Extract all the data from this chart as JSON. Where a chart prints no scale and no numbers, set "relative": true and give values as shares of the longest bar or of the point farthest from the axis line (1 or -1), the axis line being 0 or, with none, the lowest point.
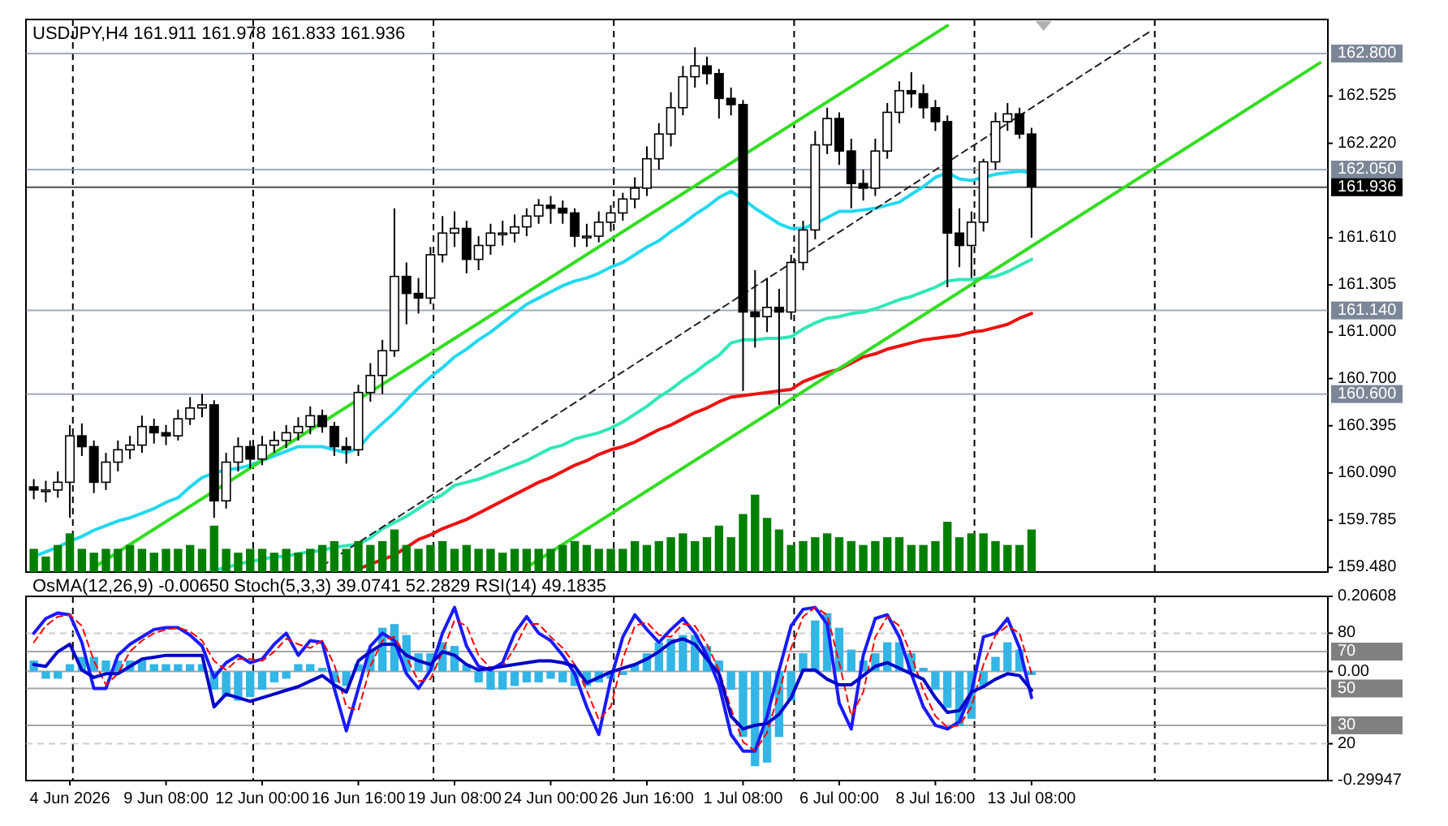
{
  "chart_data": [
    {
      "type": "candlestick",
      "title": "USDJPY,H4  161.911 161.978 161.833 161.936",
      "tick_labels": "y",
      "categories": [
        null,
        null,
        null,
        null,
        null,
        null,
        null,
        null,
        null,
        null,
        null,
        null,
        null,
        null,
        null,
        null,
        null,
        null,
        null,
        null,
        null,
        null,
        null,
        null,
        null,
        null,
        null,
        null,
        null,
        null,
        null,
        null,
        null,
        null,
        null,
        null,
        null,
        null,
        null,
        null,
        null,
        null,
        null,
        null,
        null,
        null,
        null,
        null,
        null,
        null,
        null,
        null,
        null,
        null,
        null,
        null,
        null,
        null,
        null,
        null,
        null,
        null,
        null,
        null,
        null,
        null,
        null,
        null,
        null,
        null,
        null,
        null,
        null,
        null,
        null,
        null,
        null,
        null,
        null,
        null,
        null,
        null,
        null,
        null,
        null,
        null,
        null,
        null,
        null,
        null,
        null,
        null,
        null,
        null,
        null,
        null,
        null,
        null,
        null,
        null,
        null,
        null,
        null,
        null,
        null,
        null,
        null,
        null
      ],
      "ohlc": [
        [
          160.0,
          160.05,
          159.92,
          159.98
        ],
        [
          159.98,
          160.04,
          159.9,
          159.98
        ],
        [
          159.98,
          160.1,
          159.93,
          160.03
        ],
        [
          160.03,
          160.4,
          159.8,
          160.33
        ],
        [
          160.33,
          160.41,
          160.2,
          160.26
        ],
        [
          160.26,
          160.3,
          159.96,
          160.03
        ],
        [
          160.03,
          160.22,
          159.98,
          160.16
        ],
        [
          160.16,
          160.3,
          160.1,
          160.24
        ],
        [
          160.24,
          160.33,
          160.18,
          160.27
        ],
        [
          160.27,
          160.46,
          160.22,
          160.39
        ],
        [
          160.39,
          160.44,
          160.28,
          160.35
        ],
        [
          160.35,
          160.4,
          160.27,
          160.33
        ],
        [
          160.33,
          160.5,
          160.3,
          160.44
        ],
        [
          160.44,
          160.58,
          160.4,
          160.51
        ],
        [
          160.51,
          160.6,
          160.45,
          160.53
        ],
        [
          160.53,
          160.56,
          159.8,
          159.91
        ],
        [
          159.91,
          160.22,
          159.86,
          160.16
        ],
        [
          160.16,
          160.32,
          160.1,
          160.26
        ],
        [
          160.26,
          160.3,
          160.12,
          160.18
        ],
        [
          160.18,
          160.33,
          160.14,
          160.27
        ],
        [
          160.27,
          160.36,
          160.22,
          160.3
        ],
        [
          160.3,
          160.4,
          160.25,
          160.35
        ],
        [
          160.35,
          160.45,
          160.3,
          160.39
        ],
        [
          160.39,
          160.52,
          160.34,
          160.46
        ],
        [
          160.46,
          160.5,
          160.35,
          160.39
        ],
        [
          160.39,
          160.42,
          160.2,
          160.26
        ],
        [
          160.26,
          160.32,
          160.15,
          160.24
        ],
        [
          160.24,
          160.66,
          160.2,
          160.61
        ],
        [
          160.61,
          160.8,
          160.55,
          160.72
        ],
        [
          160.72,
          160.95,
          160.6,
          160.88
        ],
        [
          160.88,
          161.8,
          160.84,
          161.36
        ],
        [
          161.36,
          161.45,
          161.05,
          161.25
        ],
        [
          161.25,
          161.35,
          161.12,
          161.22
        ],
        [
          161.22,
          161.55,
          161.18,
          161.5
        ],
        [
          161.5,
          161.75,
          161.45,
          161.64
        ],
        [
          161.64,
          161.78,
          161.55,
          161.67
        ],
        [
          161.67,
          161.72,
          161.38,
          161.47
        ],
        [
          161.47,
          161.62,
          161.4,
          161.56
        ],
        [
          161.56,
          161.7,
          161.5,
          161.64
        ],
        [
          161.64,
          161.72,
          161.56,
          161.64
        ],
        [
          161.64,
          161.76,
          161.58,
          161.68
        ],
        [
          161.68,
          161.8,
          161.62,
          161.75
        ],
        [
          161.75,
          161.86,
          161.7,
          161.82
        ],
        [
          161.82,
          161.88,
          161.7,
          161.8
        ],
        [
          161.8,
          161.85,
          161.7,
          161.77
        ],
        [
          161.77,
          161.8,
          161.55,
          161.62
        ],
        [
          161.62,
          161.7,
          161.55,
          161.62
        ],
        [
          161.62,
          161.78,
          161.58,
          161.71
        ],
        [
          161.71,
          161.82,
          161.65,
          161.77
        ],
        [
          161.77,
          161.9,
          161.72,
          161.86
        ],
        [
          161.86,
          162.0,
          161.8,
          161.93
        ],
        [
          161.93,
          162.2,
          161.88,
          162.12
        ],
        [
          162.12,
          162.35,
          162.05,
          162.28
        ],
        [
          162.28,
          162.55,
          162.2,
          162.45
        ],
        [
          162.45,
          162.72,
          162.4,
          162.65
        ],
        [
          162.65,
          162.84,
          162.58,
          162.72
        ],
        [
          162.72,
          162.78,
          162.6,
          162.67
        ],
        [
          162.67,
          162.7,
          162.38,
          162.51
        ],
        [
          162.51,
          162.58,
          162.4,
          162.47
        ],
        [
          162.47,
          162.5,
          160.62,
          161.13
        ],
        [
          161.13,
          161.4,
          160.9,
          161.1
        ],
        [
          161.1,
          161.35,
          161.0,
          161.16
        ],
        [
          161.16,
          161.28,
          160.53,
          161.13
        ],
        [
          161.13,
          161.5,
          161.08,
          161.45
        ],
        [
          161.45,
          161.72,
          161.4,
          161.66
        ],
        [
          161.66,
          162.3,
          161.6,
          162.21
        ],
        [
          162.21,
          162.45,
          162.15,
          162.38
        ],
        [
          162.38,
          162.42,
          162.08,
          162.17
        ],
        [
          162.17,
          162.25,
          161.8,
          161.96
        ],
        [
          161.96,
          162.05,
          161.85,
          161.93
        ],
        [
          161.93,
          162.25,
          161.88,
          162.17
        ],
        [
          162.17,
          162.48,
          162.12,
          162.42
        ],
        [
          162.42,
          162.62,
          162.35,
          162.56
        ],
        [
          162.56,
          162.68,
          162.45,
          162.54
        ],
        [
          162.54,
          162.6,
          162.38,
          162.45
        ],
        [
          162.45,
          162.5,
          162.3,
          162.36
        ],
        [
          162.36,
          162.4,
          161.29,
          161.64
        ],
        [
          161.64,
          161.8,
          161.42,
          161.56
        ],
        [
          161.56,
          161.78,
          161.35,
          161.71
        ],
        [
          161.71,
          162.12,
          161.65,
          162.1
        ],
        [
          162.1,
          162.42,
          162.05,
          162.36
        ],
        [
          162.36,
          162.48,
          162.3,
          162.41
        ],
        [
          162.41,
          162.45,
          162.25,
          162.28
        ],
        [
          162.28,
          162.32,
          161.61,
          161.94
        ],
        null,
        null,
        null,
        null,
        null,
        null,
        null,
        null,
        null,
        null,
        null,
        null,
        null,
        null,
        null,
        null,
        null,
        null,
        null,
        null,
        null,
        null,
        null,
        null
      ],
      "ylim": [
        159.45,
        163.02
      ],
      "yticks": [
        {
          "value": 159.48,
          "label": "159.480"
        },
        159.785,
        {
          "value": 160.09,
          "label": "160.090"
        },
        160.395,
        {
          "value": 160.7,
          "label": "160.700"
        },
        {
          "value": 161,
          "label": "161.000"
        },
        161.305,
        {
          "value": 161.61,
          "label": "161.610"
        },
        {
          "value": 162.22,
          "label": "162.220"
        },
        162.525
      ],
      "ref_lines": [
        {
          "axis": "y",
          "value": 162.8,
          "label": "162.800",
          "color": "#7b8797"
        },
        {
          "axis": "y",
          "value": 162.05,
          "label": "162.050",
          "color": "#7b8797"
        },
        {
          "axis": "y",
          "value": 161.936,
          "label": "161.936",
          "color": "#000000"
        },
        {
          "axis": "y",
          "value": 161.14,
          "label": "161.140",
          "color": "#7b8797"
        },
        {
          "axis": "y",
          "value": 160.6,
          "label": "160.600",
          "color": "#7b8797"
        }
      ],
      "series": [
        {
          "type": "line",
          "color": "#22d8f0",
          "values": [
            159.55,
            159.58,
            159.61,
            159.65,
            159.68,
            159.72,
            159.75,
            159.78,
            159.8,
            159.83,
            159.86,
            159.9,
            159.93,
            160.0,
            160.06,
            160.09,
            160.11,
            160.12,
            160.14,
            160.17,
            160.2,
            160.23,
            160.26,
            160.26,
            160.26,
            160.24,
            160.22,
            160.25,
            160.34,
            160.41,
            160.48,
            160.56,
            160.64,
            160.71,
            160.77,
            160.84,
            160.89,
            160.95,
            161.0,
            161.06,
            161.12,
            161.18,
            161.22,
            161.26,
            161.3,
            161.33,
            161.35,
            161.38,
            161.42,
            161.45,
            161.5,
            161.55,
            161.59,
            161.65,
            161.7,
            161.76,
            161.81,
            161.87,
            161.91,
            161.86,
            161.8,
            161.75,
            161.7,
            161.67,
            161.67,
            161.7,
            161.74,
            161.78,
            161.78,
            161.79,
            161.8,
            161.82,
            161.84,
            161.89,
            161.94,
            162.0,
            162.03,
            161.99,
            161.98,
            162.0,
            162.02,
            162.03,
            162.04,
            162.03,
            null,
            null,
            null,
            null,
            null,
            null,
            null,
            null,
            null,
            null,
            null,
            null,
            null,
            null,
            null,
            null,
            null,
            null,
            null,
            null,
            null,
            null,
            null,
            null
          ]
        },
        {
          "type": "line",
          "color": "#30e8b8",
          "values": [
            null,
            null,
            null,
            null,
            null,
            null,
            null,
            null,
            null,
            null,
            null,
            null,
            null,
            null,
            null,
            159.46,
            159.48,
            159.5,
            159.52,
            159.53,
            159.55,
            159.55,
            159.57,
            159.58,
            159.59,
            159.61,
            159.62,
            159.63,
            159.67,
            159.73,
            159.77,
            159.81,
            159.86,
            159.91,
            159.95,
            160.01,
            160.03,
            160.05,
            160.08,
            160.11,
            160.14,
            160.17,
            160.21,
            160.25,
            160.27,
            160.31,
            160.33,
            160.35,
            160.38,
            160.42,
            160.47,
            160.52,
            160.58,
            160.63,
            160.69,
            160.74,
            160.8,
            160.85,
            160.93,
            160.95,
            160.95,
            160.96,
            160.96,
            160.97,
            161.02,
            161.06,
            161.09,
            161.1,
            161.12,
            161.13,
            161.15,
            161.18,
            161.21,
            161.23,
            161.26,
            161.29,
            161.33,
            161.34,
            161.34,
            161.35,
            161.36,
            161.39,
            161.43,
            161.47,
            null,
            null,
            null,
            null,
            null,
            null,
            null,
            null,
            null,
            null,
            null,
            null,
            null,
            null,
            null,
            null,
            null,
            null,
            null,
            null,
            null,
            null,
            null,
            null
          ]
        },
        {
          "type": "line",
          "color": "#ee1111",
          "values": [
            null,
            null,
            null,
            null,
            null,
            null,
            null,
            null,
            null,
            null,
            null,
            null,
            null,
            null,
            null,
            null,
            null,
            null,
            null,
            null,
            null,
            null,
            null,
            null,
            null,
            null,
            null,
            159.47,
            159.5,
            159.53,
            159.56,
            159.61,
            159.66,
            159.69,
            159.73,
            159.76,
            159.79,
            159.83,
            159.87,
            159.91,
            159.95,
            159.99,
            160.03,
            160.06,
            160.1,
            160.14,
            160.17,
            160.21,
            160.24,
            160.26,
            160.29,
            160.33,
            160.37,
            160.4,
            160.44,
            160.48,
            160.51,
            160.55,
            160.58,
            160.59,
            160.6,
            160.61,
            160.62,
            160.63,
            160.68,
            160.71,
            160.74,
            160.76,
            160.8,
            160.84,
            160.86,
            160.89,
            160.91,
            160.93,
            160.95,
            160.96,
            160.97,
            160.98,
            161.0,
            161.01,
            161.03,
            161.05,
            161.09,
            161.12,
            null,
            null,
            null,
            null,
            null,
            null,
            null,
            null,
            null,
            null,
            null,
            null,
            null,
            null,
            null,
            null,
            null,
            null,
            null,
            null,
            null,
            null,
            null,
            null
          ]
        },
        {
          "type": "line",
          "color": "#33dd22",
          "values": [
            null,
            null,
            null,
            null,
            null,
            159.48,
            null,
            null,
            null,
            null,
            null,
            null,
            null,
            null,
            null,
            null,
            null,
            null,
            null,
            null,
            null,
            null,
            null,
            null,
            null,
            null,
            null,
            null,
            null,
            null,
            null,
            null,
            null,
            null,
            null,
            null,
            null,
            null,
            null,
            null,
            null,
            null,
            null,
            null,
            null,
            null,
            null,
            null,
            null,
            null,
            null,
            null,
            null,
            null,
            null,
            null,
            null,
            null,
            null,
            null,
            null,
            null,
            null,
            null,
            null,
            null,
            null,
            null,
            null,
            null,
            null,
            null,
            null,
            null,
            null,
            null,
            162.98,
            null,
            null,
            null,
            null,
            null,
            null,
            null,
            null,
            null,
            null,
            null,
            null,
            null,
            null,
            null,
            null,
            null,
            null,
            null,
            null,
            null,
            null,
            null,
            null,
            null,
            null,
            null,
            null,
            null,
            null,
            null
          ]
        },
        {
          "type": "line",
          "color": "#33dd22",
          "values": [
            null,
            null,
            null,
            null,
            null,
            null,
            null,
            null,
            null,
            null,
            null,
            null,
            null,
            null,
            null,
            null,
            null,
            null,
            null,
            null,
            null,
            null,
            null,
            null,
            null,
            null,
            null,
            null,
            null,
            null,
            null,
            null,
            null,
            null,
            null,
            null,
            null,
            null,
            null,
            null,
            null,
            159.48,
            null,
            null,
            null,
            null,
            null,
            null,
            null,
            null,
            null,
            null,
            null,
            null,
            null,
            null,
            null,
            null,
            null,
            null,
            null,
            null,
            null,
            null,
            null,
            null,
            null,
            null,
            null,
            null,
            null,
            null,
            null,
            null,
            null,
            null,
            null,
            null,
            null,
            null,
            null,
            null,
            null,
            null,
            null,
            null,
            null,
            null,
            null,
            null,
            null,
            null,
            null,
            null,
            null,
            null,
            null,
            null,
            null,
            null,
            null,
            null,
            null,
            null,
            null,
            null,
            null,
            162.74
          ]
        },
        {
          "type": "line",
          "color": "#222222",
          "line_style": "dashed",
          "values": [
            null,
            null,
            null,
            null,
            null,
            null,
            null,
            null,
            null,
            null,
            null,
            null,
            null,
            null,
            null,
            null,
            null,
            null,
            null,
            null,
            null,
            null,
            null,
            null,
            159.49,
            null,
            null,
            null,
            null,
            null,
            null,
            null,
            null,
            null,
            null,
            null,
            null,
            null,
            null,
            null,
            null,
            null,
            null,
            null,
            null,
            null,
            null,
            null,
            null,
            null,
            null,
            null,
            null,
            null,
            null,
            null,
            null,
            null,
            null,
            null,
            null,
            null,
            null,
            null,
            null,
            null,
            null,
            null,
            null,
            null,
            null,
            null,
            null,
            null,
            null,
            null,
            null,
            null,
            null,
            null,
            null,
            null,
            null,
            null,
            null,
            null,
            null,
            null,
            null,
            null,
            null,
            null,
            null,
            162.95,
            null,
            null,
            null,
            null,
            null,
            null,
            null,
            null,
            null,
            null,
            null,
            null,
            null,
            null
          ]
        }
      ]
    },
    {
      "type": "bar",
      "relative": true,
      "tick_labels": false,
      "color": "#008000",
      "categories": [
        null,
        null,
        null,
        null,
        null,
        null,
        null,
        null,
        null,
        null,
        null,
        null,
        null,
        null,
        null,
        null,
        null,
        null,
        null,
        null,
        null,
        null,
        null,
        null,
        null,
        null,
        null,
        null,
        null,
        null,
        null,
        null,
        null,
        null,
        null,
        null,
        null,
        null,
        null,
        null,
        null,
        null,
        null,
        null,
        null,
        null,
        null,
        null,
        null,
        null,
        null,
        null,
        null,
        null,
        null,
        null,
        null,
        null,
        null,
        null,
        null,
        null,
        null,
        null,
        null,
        null,
        null,
        null,
        null,
        null,
        null,
        null,
        null,
        null,
        null,
        null,
        null,
        null,
        null,
        null,
        null,
        null,
        null,
        null,
        null,
        null,
        null,
        null,
        null,
        null,
        null,
        null,
        null,
        null,
        null,
        null,
        null,
        null,
        null,
        null,
        null,
        null,
        null,
        null,
        null,
        null,
        null,
        null
      ],
      "values": [
        0.3,
        0.2,
        0.35,
        0.5,
        0.3,
        0.25,
        0.3,
        0.3,
        0.35,
        0.3,
        0.25,
        0.3,
        0.3,
        0.35,
        0.3,
        0.6,
        0.3,
        0.25,
        0.3,
        0.3,
        0.25,
        0.3,
        0.25,
        0.3,
        0.35,
        0.4,
        0.3,
        0.4,
        0.35,
        0.4,
        0.55,
        0.35,
        0.3,
        0.35,
        0.4,
        0.3,
        0.35,
        0.3,
        0.3,
        0.25,
        0.3,
        0.3,
        0.3,
        0.3,
        0.35,
        0.4,
        0.35,
        0.3,
        0.3,
        0.3,
        0.4,
        0.35,
        0.4,
        0.45,
        0.5,
        0.4,
        0.45,
        0.6,
        0.45,
        0.75,
        1,
        0.7,
        0.55,
        0.35,
        0.4,
        0.45,
        0.5,
        0.45,
        0.4,
        0.35,
        0.4,
        0.45,
        0.45,
        0.35,
        0.35,
        0.4,
        0.65,
        0.45,
        0.5,
        0.5,
        0.4,
        0.35,
        0.35,
        0.55,
        null,
        null,
        null,
        null,
        null,
        null,
        null,
        null,
        null,
        null,
        null,
        null,
        null,
        null,
        null,
        null,
        null,
        null,
        null,
        null,
        null,
        null,
        null,
        null
      ]
    },
    {
      "type": "bar",
      "title": "OsMA(12,26,9) -0.00650  Stoch(5,3,3) 39.0741 52.2829  RSI(14) 49.1835",
      "categories": [
        null,
        null,
        null,
        "4 Jun 2026",
        null,
        null,
        null,
        null,
        null,
        null,
        null,
        "9 Jun 08:00",
        null,
        null,
        null,
        null,
        null,
        null,
        null,
        "12 Jun 00:00",
        null,
        null,
        null,
        null,
        null,
        null,
        null,
        "16 Jun 16:00",
        null,
        null,
        null,
        null,
        null,
        null,
        null,
        "19 Jun 08:00",
        null,
        null,
        null,
        null,
        null,
        null,
        null,
        "24 Jun 00:00",
        null,
        null,
        null,
        null,
        null,
        null,
        null,
        "26 Jun 16:00",
        null,
        null,
        null,
        null,
        null,
        null,
        null,
        "1 Jul 08:00",
        null,
        null,
        null,
        null,
        null,
        null,
        null,
        "6 Jul 00:00",
        null,
        null,
        null,
        null,
        null,
        null,
        null,
        "8 Jul 16:00",
        null,
        null,
        null,
        null,
        null,
        null,
        null,
        "13 Jul 08:00",
        null,
        null,
        null,
        null,
        null,
        null,
        null,
        null,
        null,
        null,
        null,
        null,
        null,
        null,
        null,
        null,
        null,
        null,
        null,
        null,
        null,
        null,
        null,
        null
      ],
      "ylim": [
        0,
        100
      ],
      "yticks": [
        20,
        80
      ],
      "y2lim": [
        -0.29947,
        0.20608
      ],
      "y2ticks": [
        -0.29947,
        {
          "value": 0,
          "label": "0.00"
        },
        0.20608
      ],
      "ref_lines": [
        {
          "axis": "y",
          "value": 80,
          "color": "#b8b8b8",
          "line_style": "dashed"
        },
        {
          "axis": "y",
          "value": 70,
          "label": "70",
          "color": "#808080"
        },
        {
          "axis": "y",
          "value": 50,
          "label": "50",
          "color": "#808080"
        },
        {
          "axis": "y",
          "value": 30,
          "label": "30",
          "color": "#808080"
        },
        {
          "axis": "y",
          "value": 20,
          "color": "#b8b8b8",
          "line_style": "dashed"
        },
        {
          "axis": "y2",
          "value": 0,
          "color": "#808080"
        }
      ],
      "series": [
        {
          "axis": "y2",
          "color": "#33b5e5",
          "values": [
            0.03,
            -0.02,
            -0.02,
            0.02,
            0.04,
            0.04,
            0.03,
            0.03,
            0.03,
            0.03,
            0.02,
            0.02,
            0.02,
            0.02,
            0.02,
            -0.05,
            -0.07,
            -0.08,
            -0.07,
            -0.05,
            -0.03,
            -0.02,
            0.02,
            0.02,
            0.01,
            -0.03,
            -0.04,
            0.02,
            0.06,
            0.12,
            0.13,
            0.1,
            0.05,
            0.05,
            0.08,
            0.07,
            0.02,
            -0.03,
            -0.05,
            -0.05,
            -0.04,
            -0.03,
            -0.03,
            -0.02,
            -0.03,
            -0.04,
            -0.04,
            -0.03,
            -0.02,
            -0.01,
            0.02,
            0.05,
            0.08,
            0.09,
            0.1,
            0.1,
            0.07,
            0.03,
            -0.05,
            -0.18,
            -0.26,
            -0.25,
            -0.18,
            -0.08,
            0.05,
            0.14,
            0.16,
            0.12,
            0.06,
            0.03,
            0.05,
            0.08,
            0.08,
            0.05,
            0.01,
            -0.05,
            -0.1,
            -0.15,
            -0.13,
            -0.04,
            0.04,
            0.08,
            0.06,
            -0.01,
            null,
            null,
            null,
            null,
            null,
            null,
            null,
            null,
            null,
            null,
            null,
            null,
            null,
            null,
            null,
            null,
            null,
            null,
            null,
            null,
            null,
            null,
            null,
            null
          ]
        },
        {
          "type": "line",
          "color": "#1a1aff",
          "values": [
            80,
            88,
            91,
            90,
            75,
            50,
            50,
            68,
            74,
            78,
            82,
            83,
            83,
            79,
            73,
            56,
            64,
            68,
            64,
            66,
            74,
            80,
            68,
            76,
            75,
            50,
            27,
            50,
            73,
            80,
            76,
            58,
            50,
            60,
            80,
            94,
            73,
            62,
            60,
            64,
            80,
            89,
            80,
            76,
            68,
            58,
            40,
            25,
            55,
            78,
            90,
            82,
            75,
            82,
            88,
            80,
            68,
            52,
            25,
            16,
            16,
            35,
            60,
            84,
            93,
            94,
            85,
            42,
            28,
            68,
            88,
            90,
            78,
            58,
            40,
            30,
            28,
            32,
            48,
            78,
            80,
            88,
            72,
            45,
            null,
            null,
            null,
            null,
            null,
            null,
            null,
            null,
            null,
            null,
            null,
            null,
            null,
            null,
            null,
            null,
            null,
            null,
            null,
            null,
            null,
            null,
            null,
            null
          ]
        },
        {
          "type": "line",
          "color": "#ff0000",
          "line_style": "dashed",
          "values": [
            75,
            84,
            89,
            90,
            84,
            65,
            52,
            58,
            70,
            76,
            80,
            82,
            83,
            81,
            76,
            65,
            60,
            66,
            66,
            65,
            70,
            77,
            74,
            72,
            76,
            63,
            40,
            38,
            62,
            76,
            78,
            67,
            54,
            55,
            70,
            87,
            84,
            68,
            61,
            62,
            72,
            85,
            85,
            78,
            72,
            63,
            49,
            33,
            40,
            66,
            84,
            86,
            79,
            78,
            85,
            84,
            74,
            60,
            39,
            21,
            16,
            26,
            48,
            72,
            89,
            94,
            90,
            64,
            35,
            48,
            78,
            89,
            84,
            68,
            49,
            35,
            29,
            30,
            40,
            63,
            79,
            84,
            80,
            58,
            null,
            null,
            null,
            null,
            null,
            null,
            null,
            null,
            null,
            null,
            null,
            null,
            null,
            null,
            null,
            null,
            null,
            null,
            null,
            null,
            null,
            null,
            null,
            null
          ]
        },
        {
          "type": "line",
          "color": "#0000c8",
          "values": [
            63,
            62,
            70,
            74,
            60,
            56,
            58,
            58,
            62,
            66,
            67,
            68,
            68,
            68,
            68,
            40,
            47,
            45,
            43,
            45,
            47,
            49,
            51,
            54,
            57,
            52,
            48,
            65,
            70,
            74,
            74,
            68,
            65,
            63,
            70,
            68,
            63,
            60,
            61,
            62,
            63,
            64,
            65,
            65,
            64,
            62,
            53,
            56,
            59,
            61,
            63,
            66,
            70,
            75,
            77,
            74,
            66,
            58,
            35,
            28,
            30,
            31,
            36,
            45,
            60,
            60,
            55,
            52,
            52,
            57,
            62,
            64,
            61,
            58,
            55,
            45,
            37,
            38,
            48,
            51,
            55,
            58,
            57,
            49,
            null,
            null,
            null,
            null,
            null,
            null,
            null,
            null,
            null,
            null,
            null,
            null,
            null,
            null,
            null,
            null,
            null,
            null,
            null,
            null,
            null,
            null,
            null,
            null
          ]
        }
      ]
    }
  ]
}
